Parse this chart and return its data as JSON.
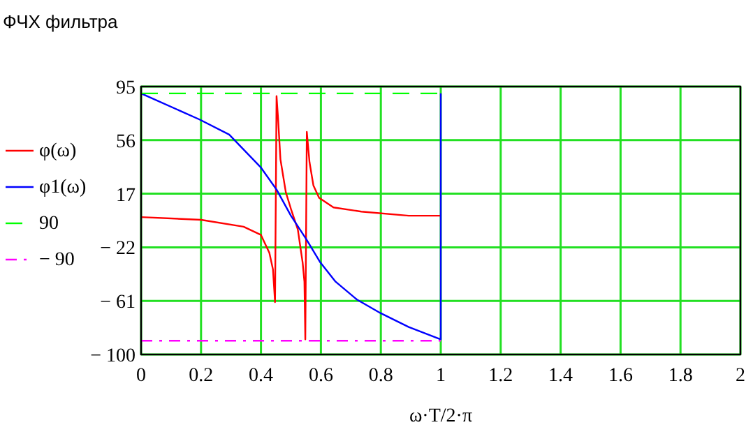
{
  "chart_data": {
    "type": "line",
    "title": "ФЧХ фильтра",
    "xlabel": "ω·T/2·π",
    "xlim": [
      0,
      2
    ],
    "xticks": [
      0,
      0.2,
      0.4,
      0.6,
      0.8,
      1,
      1.2,
      1.4,
      1.6,
      1.8,
      2
    ],
    "ylim": [
      -100,
      95
    ],
    "yticks": [
      95,
      56,
      17,
      {
        "value": -22,
        "label": "− 22"
      },
      {
        "value": -61,
        "label": "− 61"
      },
      {
        "value": -100,
        "label": "− 100"
      }
    ],
    "grid": true,
    "legend": "left",
    "series": [
      {
        "name": "φ(ω)",
        "color": "#ff0000",
        "x": [
          0,
          0.2,
          0.342,
          0.4,
          0.428,
          0.44,
          0.447,
          0.452,
          0.457,
          0.465,
          0.483,
          0.5,
          0.523,
          0.539,
          0.545,
          0.548,
          0.553,
          0.562,
          0.575,
          0.594,
          0.642,
          0.735,
          0.893,
          1
        ],
        "values": [
          0,
          -2,
          -7,
          -13,
          -26,
          -38,
          -62,
          88,
          72,
          42,
          18,
          6,
          -9,
          -33,
          -47,
          -89,
          62,
          40,
          23,
          14,
          7,
          4,
          1,
          1
        ]
      },
      {
        "name": "φ1(ω)",
        "color": "#0000ff",
        "x": [
          0,
          0.195,
          0.294,
          0.4,
          0.452,
          0.5,
          0.551,
          0.598,
          0.649,
          0.72,
          0.8,
          0.893,
          1,
          1
        ],
        "values": [
          90,
          71,
          60,
          36,
          20,
          1,
          -16,
          -33,
          -47,
          -60,
          -70,
          -80,
          -89,
          90
        ]
      },
      {
        "name": "90",
        "color": "#00ff00",
        "line_style": "dashed",
        "x": [
          0,
          1
        ],
        "values": [
          90,
          90
        ]
      },
      {
        "name": "− 90",
        "color": "#ff00ff",
        "line_style": "dotted",
        "x": [
          0,
          1
        ],
        "values": [
          -90,
          -90
        ]
      }
    ]
  }
}
